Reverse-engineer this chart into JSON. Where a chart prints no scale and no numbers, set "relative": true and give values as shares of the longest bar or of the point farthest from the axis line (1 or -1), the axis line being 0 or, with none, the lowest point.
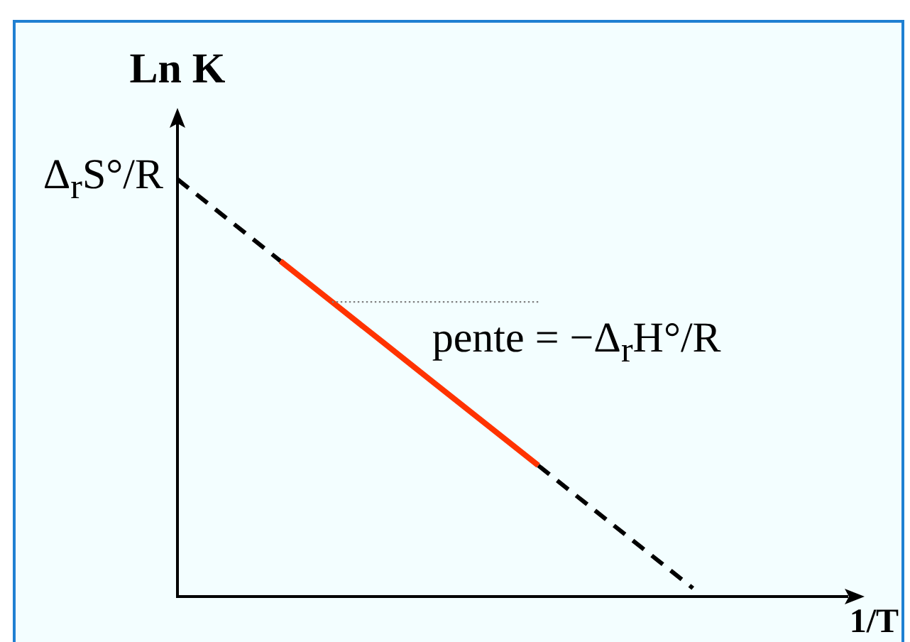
{
  "chart_data": {
    "type": "line",
    "relative": true,
    "xlabel": "1/T",
    "ylabel": "Ln K",
    "marker": "none",
    "categories": [
      null,
      null,
      null,
      null,
      null,
      null,
      null,
      null,
      null,
      null,
      null,
      null,
      null,
      null
    ],
    "series": [
      {
        "color": "#000000",
        "line_style": "dashed",
        "values": [
          1,
          0.902,
          0.804,
          null,
          null,
          null,
          null,
          0.314,
          0.216,
          0.118,
          0.02,
          null,
          null,
          null
        ]
      },
      {
        "color": "#ff3300",
        "line_style": "solid",
        "values": [
          null,
          null,
          0.804,
          0.706,
          0.608,
          0.51,
          0.412,
          0.314,
          null,
          null,
          null,
          null,
          null,
          null
        ]
      },
      {
        "color": "#808080",
        "line_style": "dotted",
        "values": [
          null,
          null,
          null,
          0.706,
          0.706,
          0.706,
          0.706,
          0.706,
          null,
          null,
          null,
          null,
          null,
          null
        ]
      }
    ],
    "annotations": [
      "Δ$_{r}$S°/R",
      "pente = −Δ$_{r}$H°/R"
    ]
  }
}
